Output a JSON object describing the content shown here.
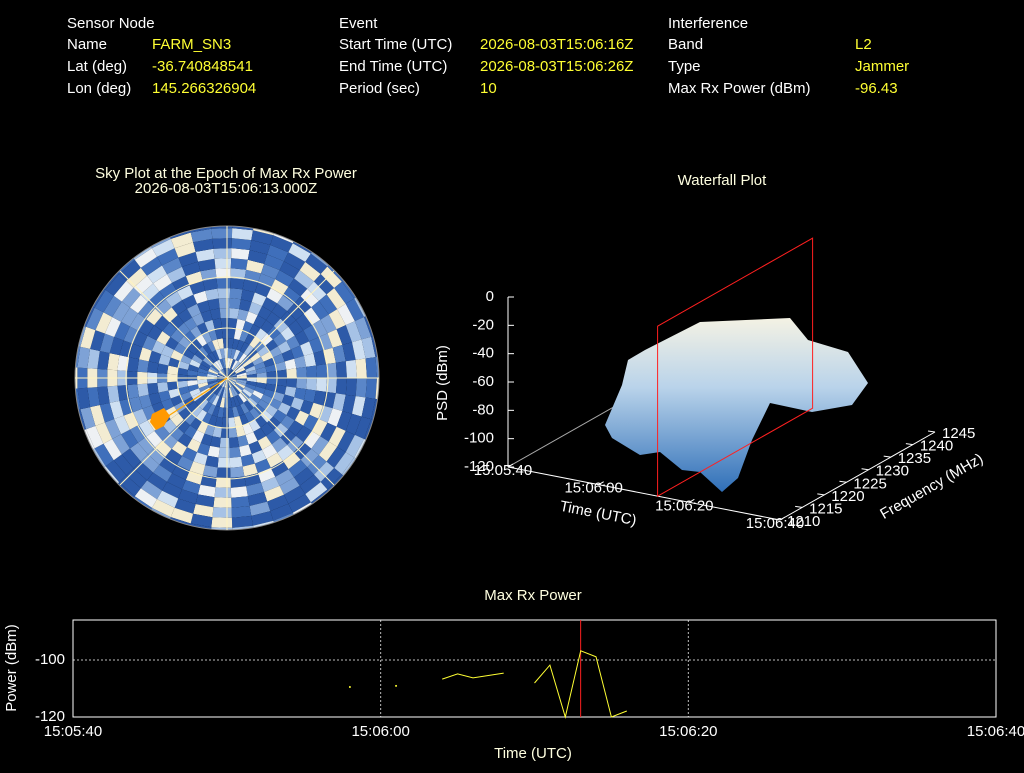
{
  "header": {
    "columns": [
      {
        "title": "Sensor Node",
        "rows": [
          [
            "Name",
            "FARM_SN3"
          ],
          [
            "Lat (deg)",
            "-36.740848541"
          ],
          [
            "Lon (deg)",
            "145.266326904"
          ]
        ]
      },
      {
        "title": "Event",
        "rows": [
          [
            "Start Time (UTC)",
            "2026-08-03T15:06:16Z"
          ],
          [
            "End Time (UTC)",
            "2026-08-03T15:06:26Z"
          ],
          [
            "Period (sec)",
            "10"
          ]
        ]
      },
      {
        "title": "Interference",
        "rows": [
          [
            "Band",
            "L2"
          ],
          [
            "Type",
            "Jammer"
          ],
          [
            "Max Rx Power (dBm)",
            "-96.43"
          ]
        ]
      }
    ]
  },
  "sky_plot": {
    "title": "Sky Plot at the Epoch of Max Rx Power",
    "subtitle": "2026-08-03T15:06:13.000Z"
  },
  "waterfall": {
    "title": "Waterfall Plot",
    "zlabel": "PSD (dBm)",
    "xlabel": "Time (UTC)",
    "ylabel": "Frequency (MHz)",
    "zlim": [
      -120,
      0
    ],
    "zticks": [
      0,
      -20,
      -40,
      -60,
      -80,
      -100,
      -120
    ],
    "xlim": [
      54340,
      54400
    ],
    "xticks": [
      {
        "value": 54340,
        "label": "15:05:40"
      },
      {
        "value": 54360,
        "label": "15:06:00"
      },
      {
        "value": 54380,
        "label": "15:06:20"
      },
      {
        "value": 54400,
        "label": "15:06:40"
      }
    ],
    "ylim": [
      1210,
      1245
    ],
    "yticks": [
      1210,
      1215,
      1220,
      1225,
      1230,
      1235,
      1240,
      1245
    ],
    "marker_x": 54373
  },
  "chart_data": {
    "type": "line",
    "title": "Max Rx Power",
    "xlabel": "Time (UTC)",
    "ylabel": "Power (dBm)",
    "x": [
      54358,
      54359,
      54361,
      54362,
      54364,
      54365,
      54366,
      54368,
      54369,
      54370,
      54371,
      54372,
      54373,
      54374,
      54375,
      54376
    ],
    "series": [
      {
        "name": "Max Rx Power",
        "color": "#ffff33",
        "values": [
          -109.5,
          null,
          -109.1,
          null,
          -106.7,
          -104.9,
          -106.3,
          -104.6,
          null,
          -108.1,
          -101.8,
          -120,
          -96.8,
          -98.9,
          -120,
          -117.9
        ]
      }
    ],
    "xlim": [
      54340,
      54400
    ],
    "xticks": [
      {
        "value": 54340,
        "label": "15:05:40"
      },
      {
        "value": 54360,
        "label": "15:06:00"
      },
      {
        "value": 54380,
        "label": "15:06:20"
      },
      {
        "value": 54400,
        "label": "15:06:40"
      }
    ],
    "ylim": [
      -120,
      -86
    ],
    "yticks": [
      -120,
      -100
    ],
    "grid": true,
    "marker_x": 54373,
    "marker_color": "#ff2020"
  }
}
